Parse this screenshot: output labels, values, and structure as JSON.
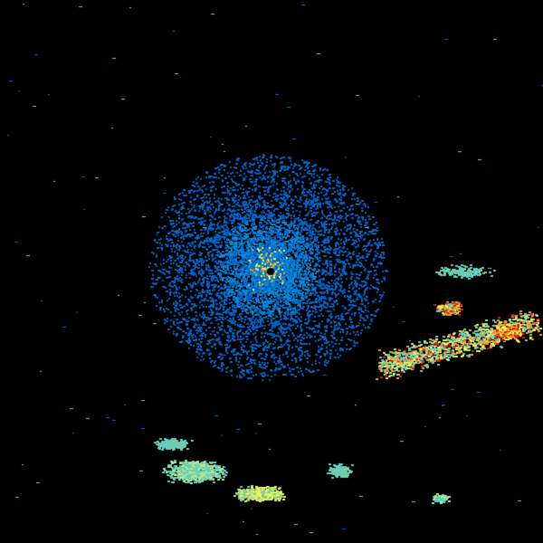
{
  "background_color": "#000000",
  "reflectivity_palette": {
    "light_blue": "#0a8ad6",
    "blue": "#0064c8",
    "cyan": "#5ad2c8",
    "teal": "#7ac8a0",
    "light_green": "#b4e68c",
    "yellow": "#f0f050",
    "orange": "#f0a020",
    "red": "#e02010"
  }
}
